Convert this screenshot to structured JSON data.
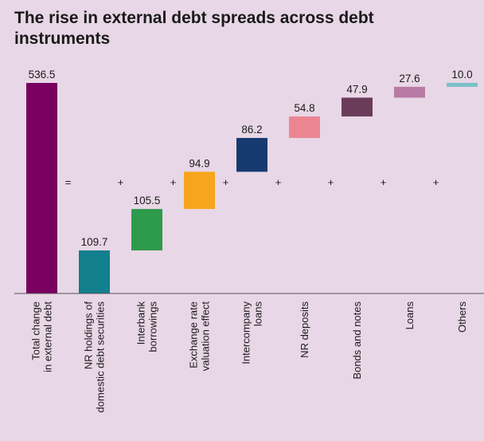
{
  "chart_data": {
    "type": "waterfall",
    "title": "The rise in external debt spreads across debt instruments",
    "categories": [
      [
        "Total change",
        "in external debt"
      ],
      [
        "NR holdings of",
        "domestic debt securities"
      ],
      [
        "Interbank",
        "borrowings"
      ],
      [
        "Exchange rate",
        "valuation effect"
      ],
      [
        "Intercompany",
        "loans"
      ],
      [
        "NR deposits"
      ],
      [
        "Bonds and notes"
      ],
      [
        "Loans"
      ],
      [
        "Others"
      ]
    ],
    "values": [
      536.5,
      109.7,
      105.5,
      94.9,
      86.2,
      54.8,
      47.9,
      27.6,
      10.0
    ],
    "value_labels": [
      "536.5",
      "109.7",
      "105.5",
      "94.9",
      "86.2",
      "54.8",
      "47.9",
      "27.6",
      "10.0"
    ],
    "colors": [
      "#7a0060",
      "#127f8c",
      "#2e9a4b",
      "#f6a51c",
      "#163a70",
      "#ec8592",
      "#6b3c5a",
      "#b97aa5",
      "#7cc0c8"
    ],
    "operators": [
      "=",
      "+",
      "+",
      "+",
      "+",
      "+",
      "+",
      "+"
    ],
    "ylim": [
      0,
      560
    ]
  }
}
